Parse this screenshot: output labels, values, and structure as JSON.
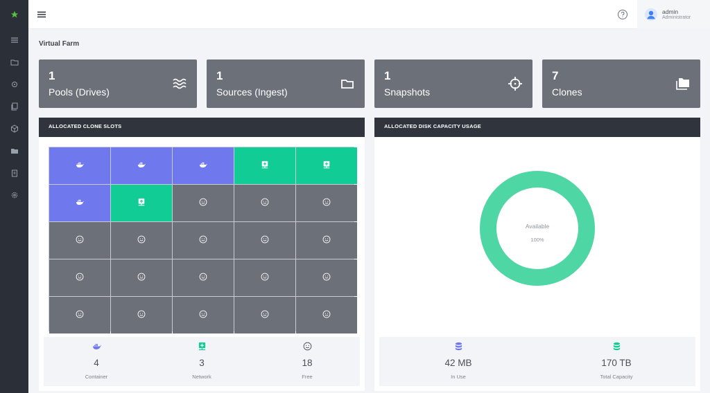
{
  "header": {
    "user_name": "admin",
    "user_role": "Administrator"
  },
  "page": {
    "title": "Virtual Farm"
  },
  "stats": [
    {
      "value": "1",
      "label": "Pools (Drives)",
      "icon": "waves-icon"
    },
    {
      "value": "1",
      "label": "Sources (Ingest)",
      "icon": "folder-icon"
    },
    {
      "value": "1",
      "label": "Snapshots",
      "icon": "crosshair-icon"
    },
    {
      "value": "7",
      "label": "Clones",
      "icon": "folders-icon"
    }
  ],
  "slots_panel": {
    "title": "ALLOCATED CLONE SLOTS",
    "slots": [
      "container",
      "container",
      "container",
      "network",
      "network",
      "container",
      "network",
      "free",
      "free",
      "free",
      "free",
      "free",
      "free",
      "free",
      "free",
      "free",
      "free",
      "free",
      "free",
      "free",
      "free",
      "free",
      "free",
      "free",
      "free"
    ],
    "summary": [
      {
        "value": "4",
        "label": "Container",
        "icon": "docker-icon"
      },
      {
        "value": "3",
        "label": "Network",
        "icon": "network-icon"
      },
      {
        "value": "18",
        "label": "Free",
        "icon": "smiley-icon"
      }
    ]
  },
  "disk_panel": {
    "title": "ALLOCATED DISK CAPACITY USAGE",
    "donut": {
      "label": "Available",
      "percent_label": "100%",
      "available_fraction": 1.0,
      "color": "#4fd6a5"
    },
    "summary": [
      {
        "value": "42 MB",
        "label": "In Use",
        "icon": "database-icon",
        "color": "#6f78ec"
      },
      {
        "value": "170 TB",
        "label": "Total Capacity",
        "icon": "database-icon",
        "color": "#12cc96"
      }
    ]
  },
  "colors": {
    "container": "#6f78ec",
    "network": "#12cc96",
    "free": "#6b7079",
    "sidebar": "#2b3038"
  }
}
